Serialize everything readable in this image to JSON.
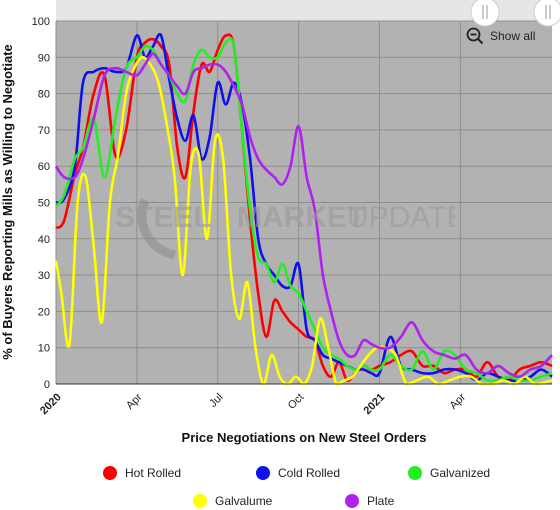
{
  "chart_data": {
    "type": "line",
    "xlabel": "Price Negotiations on New Steel Orders",
    "ylabel": "% of Buyers Reporting Mills as Willing to Negotiate",
    "ylim": [
      0,
      100
    ],
    "yticks": [
      0,
      10,
      20,
      30,
      40,
      50,
      60,
      70,
      80,
      90,
      100
    ],
    "x_ticks": [
      {
        "label": "2020",
        "t": 0,
        "bold": true
      },
      {
        "label": "Apr",
        "t": 3,
        "bold": false
      },
      {
        "label": "Jul",
        "t": 6,
        "bold": false
      },
      {
        "label": "Oct",
        "t": 9,
        "bold": false
      },
      {
        "label": "2021",
        "t": 12,
        "bold": true
      },
      {
        "label": "Apr",
        "t": 15,
        "bold": false
      }
    ],
    "x_range_months": [
      0,
      18.4
    ],
    "grid": true,
    "legend_position": "bottom",
    "series": [
      {
        "name": "Hot Rolled",
        "color": "#ff0000",
        "x": [
          0,
          0.3,
          0.7,
          1,
          1.4,
          1.8,
          2.2,
          2.6,
          3,
          3.3,
          3.6,
          3.9,
          4.2,
          4.5,
          4.8,
          5.1,
          5.4,
          5.7,
          6,
          6.3,
          6.6,
          6.9,
          7.2,
          7.5,
          7.8,
          8.1,
          8.4,
          8.7,
          9,
          9.3,
          9.6,
          9.9,
          10.2,
          10.5,
          10.8,
          11.1,
          11.4,
          11.7,
          12,
          12.4,
          12.8,
          13.2,
          13.6,
          14,
          14.4,
          14.8,
          15.2,
          15.6,
          16,
          16.4,
          16.8,
          17.2,
          17.6,
          18,
          18.4
        ],
        "y": [
          43,
          45,
          58,
          65,
          80,
          85,
          63,
          70,
          90,
          94,
          95,
          93,
          88,
          65,
          57,
          75,
          88,
          86,
          92,
          96,
          93,
          70,
          45,
          25,
          13,
          23,
          20,
          17,
          15,
          13,
          12,
          5,
          2,
          6,
          1,
          3,
          5,
          4,
          5,
          6,
          8,
          9,
          5,
          5,
          3,
          4,
          4,
          2,
          6,
          2,
          1,
          4,
          5,
          6,
          5
        ]
      },
      {
        "name": "Cold Rolled",
        "color": "#1010ee",
        "x": [
          0,
          0.3,
          0.7,
          1,
          1.4,
          1.8,
          2.2,
          2.6,
          3,
          3.3,
          3.6,
          3.9,
          4.2,
          4.5,
          4.8,
          5.1,
          5.4,
          5.7,
          6,
          6.3,
          6.6,
          6.9,
          7.2,
          7.5,
          7.8,
          8.1,
          8.4,
          8.7,
          9,
          9.3,
          9.6,
          9.9,
          10.2,
          10.5,
          10.8,
          11.1,
          11.4,
          11.7,
          12,
          12.4,
          12.8,
          13.2,
          13.6,
          14,
          14.4,
          14.8,
          15.2,
          15.6,
          16,
          16.4,
          16.8,
          17.2,
          17.6,
          18,
          18.4
        ],
        "y": [
          50,
          51,
          60,
          83,
          86,
          87,
          86,
          87,
          96,
          90,
          93,
          96,
          84,
          73,
          67,
          74,
          62,
          68,
          83,
          77,
          83,
          77,
          62,
          40,
          33,
          30,
          27,
          27,
          33,
          15,
          12,
          8,
          7,
          6,
          5,
          4,
          4,
          3,
          3,
          13,
          5,
          4,
          3,
          3,
          4,
          4,
          3,
          1,
          3,
          2,
          1,
          1,
          2,
          4,
          2
        ]
      },
      {
        "name": "Galvanized",
        "color": "#22ee22",
        "x": [
          0,
          0.3,
          0.7,
          1,
          1.4,
          1.8,
          2.2,
          2.6,
          3,
          3.3,
          3.6,
          3.9,
          4.2,
          4.5,
          4.8,
          5.1,
          5.4,
          5.7,
          6,
          6.3,
          6.6,
          6.9,
          7.2,
          7.5,
          7.8,
          8.1,
          8.4,
          8.7,
          9,
          9.3,
          9.6,
          9.9,
          10.2,
          10.5,
          10.8,
          11.1,
          11.4,
          11.7,
          12,
          12.4,
          12.8,
          13.2,
          13.6,
          14,
          14.4,
          14.8,
          15.2,
          15.6,
          16,
          16.4,
          16.8,
          17.2,
          17.6,
          18,
          18.4
        ],
        "y": [
          49,
          52,
          62,
          65,
          73,
          57,
          73,
          87,
          90,
          93,
          92,
          88,
          85,
          80,
          78,
          88,
          92,
          90,
          90,
          94,
          93,
          70,
          48,
          35,
          33,
          28,
          33,
          27,
          25,
          20,
          15,
          10,
          8,
          7,
          5,
          4,
          5,
          4,
          4,
          8,
          5,
          4,
          9,
          4,
          9,
          8,
          4,
          3,
          1,
          1,
          2,
          1,
          1,
          2,
          3
        ]
      },
      {
        "name": "Galvalume",
        "color": "#ffff00",
        "x": [
          0,
          0.2,
          0.5,
          0.8,
          1.1,
          1.4,
          1.7,
          2,
          2.3,
          2.6,
          2.9,
          3.2,
          3.5,
          3.8,
          4.1,
          4.4,
          4.7,
          5,
          5.3,
          5.6,
          5.9,
          6.2,
          6.5,
          6.8,
          7.1,
          7.4,
          7.7,
          8,
          8.3,
          8.6,
          8.9,
          9.2,
          9.5,
          9.8,
          10.1,
          10.4,
          10.7,
          11,
          11.3,
          11.6,
          11.9,
          12.2,
          12.6,
          13,
          13.4,
          13.8,
          14.2,
          14.6,
          15,
          15.4,
          15.8,
          16.2,
          16.6,
          17,
          17.4,
          17.8,
          18.4
        ],
        "y": [
          34,
          25,
          11,
          50,
          57,
          38,
          17,
          50,
          63,
          80,
          87,
          90,
          88,
          83,
          72,
          57,
          30,
          60,
          63,
          40,
          67,
          62,
          30,
          18,
          28,
          10,
          0,
          8,
          2,
          0,
          2,
          0,
          5,
          18,
          10,
          0,
          1,
          2,
          5,
          8,
          10,
          10,
          8,
          0,
          1,
          2,
          0,
          1,
          2,
          2,
          0,
          0,
          1,
          0,
          2,
          0,
          1
        ]
      },
      {
        "name": "Plate",
        "color": "#b020ee",
        "x": [
          0,
          0.3,
          0.7,
          1,
          1.4,
          1.8,
          2.2,
          2.6,
          3,
          3.3,
          3.6,
          3.9,
          4.2,
          4.5,
          4.8,
          5.1,
          5.4,
          5.7,
          6,
          6.3,
          6.6,
          6.9,
          7.2,
          7.5,
          7.8,
          8.1,
          8.4,
          8.7,
          9,
          9.3,
          9.6,
          9.9,
          10.2,
          10.5,
          10.8,
          11.1,
          11.4,
          11.7,
          12,
          12.4,
          12.8,
          13.2,
          13.6,
          14,
          14.4,
          14.8,
          15.2,
          15.6,
          16,
          16.4,
          16.8,
          17.2,
          17.6,
          18,
          18.4
        ],
        "y": [
          60,
          57,
          57,
          62,
          73,
          85,
          87,
          86,
          85,
          88,
          91,
          88,
          85,
          82,
          80,
          86,
          87,
          88,
          88,
          86,
          82,
          77,
          68,
          62,
          59,
          57,
          55,
          60,
          71,
          57,
          48,
          30,
          20,
          12,
          8,
          8,
          12,
          11,
          10,
          10,
          13,
          17,
          12,
          9,
          8,
          7,
          8,
          4,
          3,
          5,
          3,
          2,
          4,
          5,
          8
        ]
      }
    ]
  },
  "ui": {
    "show_all_label": "Show all",
    "watermark_text_left": "STEEL",
    "watermark_text_middle": "MARKET",
    "watermark_text_right": "UPDATE"
  },
  "colors": {
    "plot_background": "#b2b2b2",
    "grid": "#8e8e8e",
    "navigator_background": "#e6e6e6"
  }
}
